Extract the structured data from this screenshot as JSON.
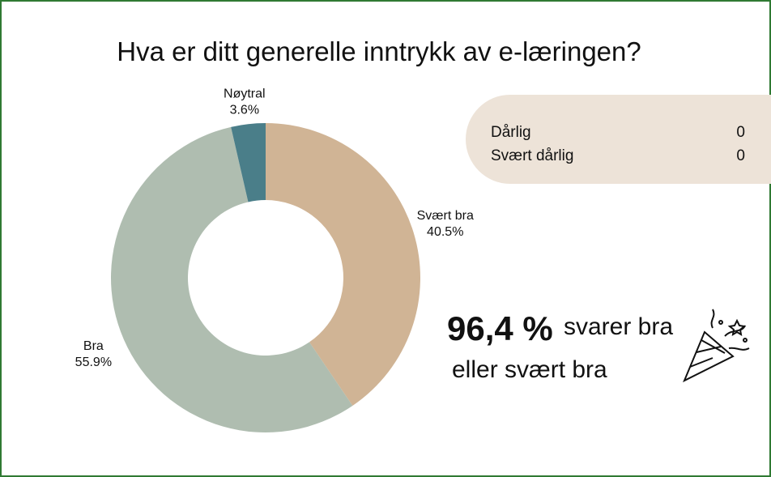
{
  "chart_data": {
    "type": "pie",
    "title": "Hva er ditt generelle inntrykk av e-læringen?",
    "categories": [
      "Svært bra",
      "Bra",
      "Nøytral"
    ],
    "values": [
      40.5,
      55.9,
      3.6
    ],
    "value_labels": [
      "40.5%",
      "55.9%",
      "3.6%"
    ],
    "colors": [
      "#d0b495",
      "#afbdb0",
      "#4a7e89"
    ]
  },
  "summary_table": {
    "rows": [
      [
        "Dårlig",
        0
      ],
      [
        "Svært dårlig",
        0
      ]
    ]
  },
  "callout": {
    "highlight": "96,4 %",
    "text_1": "svarer bra",
    "text_2": "eller svært bra"
  }
}
